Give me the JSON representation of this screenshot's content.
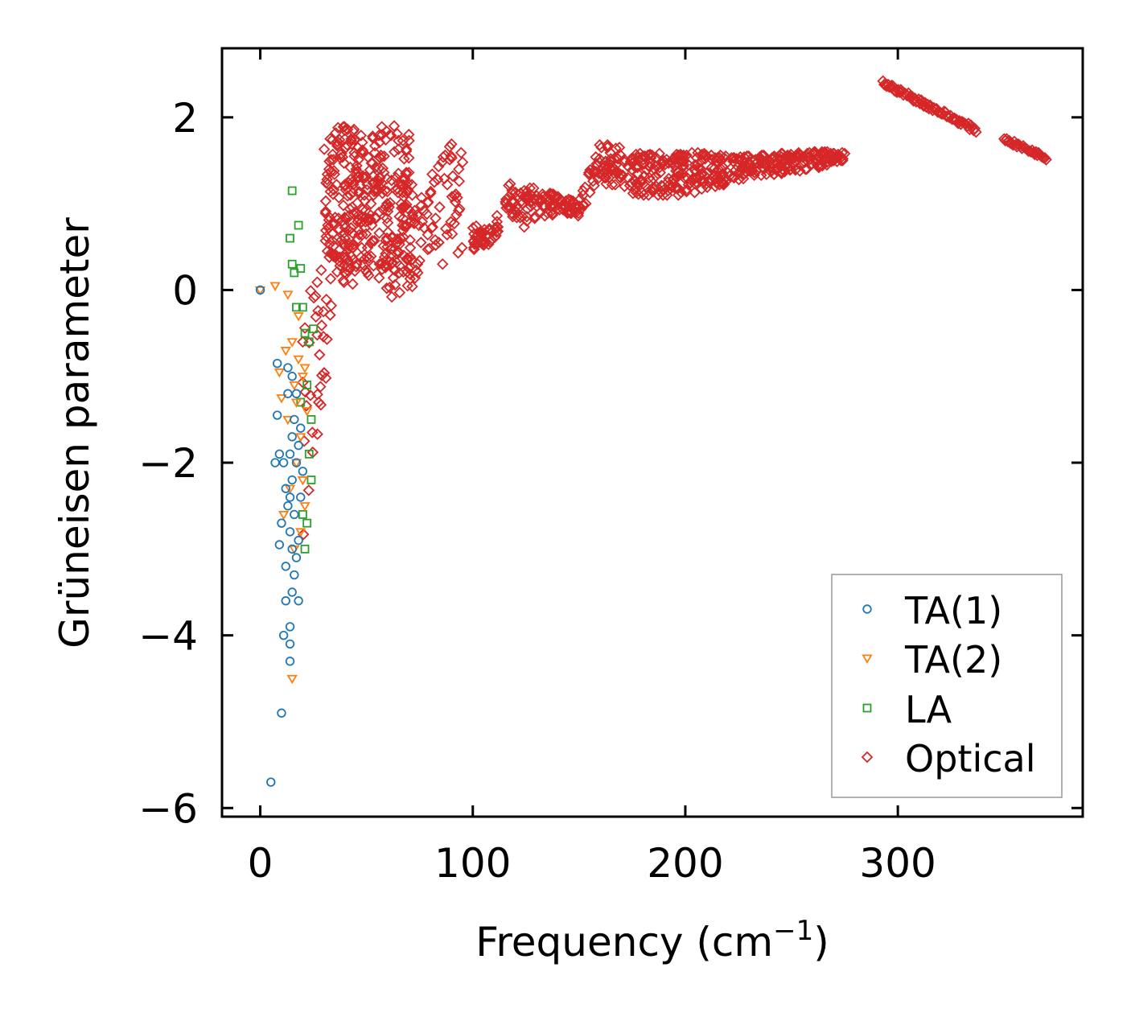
{
  "chart_data": {
    "type": "scatter",
    "title": "",
    "xlabel": "Frequency (cm",
    "xlabel_sup": "−1",
    "xlabel_close": ")",
    "ylabel": "Grüneisen parameter",
    "xlim": [
      -18,
      387
    ],
    "ylim": [
      -6.1,
      2.8
    ],
    "xticks": [
      0,
      100,
      200,
      300
    ],
    "xtick_labels": [
      "0",
      "100",
      "200",
      "300"
    ],
    "yticks": [
      2,
      0,
      -2,
      -4,
      -6
    ],
    "ytick_labels": [
      "2",
      "0",
      "−2",
      "−4",
      "−6"
    ],
    "legend_position": "lower-right",
    "series": [
      {
        "name": "TA(1)",
        "marker": "circle",
        "color": "#1f77b4",
        "points": [
          [
            0,
            0
          ],
          [
            5,
            -5.7
          ],
          [
            7,
            -2
          ],
          [
            8,
            -1.45
          ],
          [
            8,
            -0.85
          ],
          [
            9,
            -2.95
          ],
          [
            9,
            -1.9
          ],
          [
            10,
            -4.9
          ],
          [
            10,
            -2.7
          ],
          [
            11,
            -4.0
          ],
          [
            11,
            -2.0
          ],
          [
            12,
            -3.2
          ],
          [
            12,
            -3.6
          ],
          [
            12,
            -2.3
          ],
          [
            13,
            -0.9
          ],
          [
            13,
            -1.2
          ],
          [
            13,
            -2.5
          ],
          [
            14,
            -4.3
          ],
          [
            14,
            -4.1
          ],
          [
            14,
            -3.9
          ],
          [
            14,
            -2.8
          ],
          [
            14,
            -2.4
          ],
          [
            14,
            -1.9
          ],
          [
            15,
            -1.0
          ],
          [
            15,
            -1.7
          ],
          [
            15,
            -2.2
          ],
          [
            15,
            -3.0
          ],
          [
            15,
            -3.5
          ],
          [
            16,
            -2.6
          ],
          [
            16,
            -3.3
          ],
          [
            16,
            -1.5
          ],
          [
            17,
            -1.2
          ],
          [
            17,
            -3.1
          ],
          [
            17,
            -2.0
          ],
          [
            18,
            -1.8
          ],
          [
            18,
            -2.9
          ],
          [
            18,
            -3.6
          ],
          [
            19,
            -2.4
          ],
          [
            19,
            -1.6
          ],
          [
            20,
            -2.1
          ]
        ]
      },
      {
        "name": "TA(2)",
        "marker": "triangle-down",
        "color": "#ff7f0e",
        "points": [
          [
            0,
            0
          ],
          [
            7,
            0.05
          ],
          [
            9,
            -0.95
          ],
          [
            10,
            -1.25
          ],
          [
            11,
            -2.6
          ],
          [
            12,
            -0.7
          ],
          [
            13,
            -0.05
          ],
          [
            13,
            -1.5
          ],
          [
            14,
            -2.3
          ],
          [
            15,
            -4.5
          ],
          [
            15,
            -0.6
          ],
          [
            16,
            -1.1
          ],
          [
            16,
            -3.0
          ],
          [
            17,
            -1.3
          ],
          [
            17,
            -2.0
          ],
          [
            18,
            -0.3
          ],
          [
            18,
            -0.8
          ],
          [
            19,
            -1.7
          ],
          [
            19,
            -2.8
          ],
          [
            20,
            -2.2
          ],
          [
            20,
            -1.0
          ],
          [
            21,
            -0.9
          ],
          [
            21,
            -2.5
          ],
          [
            22,
            -1.4
          ]
        ]
      },
      {
        "name": "LA",
        "marker": "square",
        "color": "#2ca02c",
        "points": [
          [
            14,
            0.6
          ],
          [
            15,
            1.15
          ],
          [
            15,
            0.3
          ],
          [
            16,
            0.2
          ],
          [
            17,
            -0.2
          ],
          [
            18,
            0.75
          ],
          [
            19,
            0.25
          ],
          [
            19,
            -1.3
          ],
          [
            20,
            -2.6
          ],
          [
            20,
            -0.2
          ],
          [
            21,
            -0.5
          ],
          [
            21,
            -3.0
          ],
          [
            22,
            -1.1
          ],
          [
            22,
            -2.7
          ],
          [
            23,
            -0.6
          ],
          [
            23,
            -1.9
          ],
          [
            24,
            -1.5
          ],
          [
            24,
            -2.2
          ],
          [
            25,
            -0.45
          ]
        ]
      },
      {
        "name": "Optical",
        "marker": "diamond",
        "color": "#d62728",
        "points": []
      }
    ]
  },
  "legend": {
    "items": [
      "TA(1)",
      "TA(2)",
      "LA",
      "Optical"
    ]
  }
}
